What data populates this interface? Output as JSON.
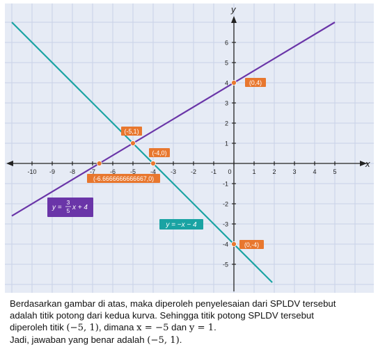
{
  "chart_data": {
    "type": "line",
    "title": "",
    "xlabel": "x",
    "ylabel": "y",
    "xlim": [
      -11,
      6.5
    ],
    "ylim": [
      -6.5,
      7.5
    ],
    "x_ticks": [
      -10,
      -9,
      -8,
      -7,
      -6,
      -5,
      -4,
      -3,
      -2,
      -1,
      0,
      1,
      2,
      3,
      4,
      5
    ],
    "y_ticks": [
      -5,
      -4,
      -3,
      -2,
      -1,
      1,
      2,
      3,
      4,
      5,
      6
    ],
    "x_tick_labels": [
      "-10",
      "-9",
      "-8",
      "-7",
      "-6",
      "-5",
      "-4",
      "-3",
      "-2",
      "-1",
      "0",
      "1",
      "2",
      "3",
      "4",
      "5"
    ],
    "y_tick_labels": [
      "-5",
      "-4",
      "-3",
      "-2",
      "-1",
      "1",
      "2",
      "3",
      "4",
      "5",
      "6"
    ],
    "grid": true,
    "series": [
      {
        "name": "y = 3/5x + 4",
        "label_parts": {
          "lhs": "y =",
          "num": "3",
          "den": "5",
          "rhs": "x + 4"
        },
        "x": [
          -11,
          5
        ],
        "y": [
          -2.6,
          7
        ],
        "color": "#6a35a8"
      },
      {
        "name": "y = −x − 4",
        "x": [
          -11,
          1.9
        ],
        "y": [
          7,
          -5.9
        ],
        "color": "#1aa3a3"
      }
    ],
    "points": [
      {
        "label": "(0,4)",
        "x": 0,
        "y": 4
      },
      {
        "label": "(-5,1)",
        "x": -5,
        "y": 1
      },
      {
        "label": "(-4,0)",
        "x": -4,
        "y": 0
      },
      {
        "label": "(-6.6666666666667,0)",
        "x": -6.6666666666667,
        "y": 0
      },
      {
        "label": "(0,-4)",
        "x": 0,
        "y": -4
      }
    ],
    "point_color": "#e8772e",
    "background": "#e6ebf5",
    "grid_color": "#c8d2e6"
  },
  "explanation": {
    "line1": "Berdasarkan gambar di atas, maka diperoleh penyelesaian dari SPLDV tersebut",
    "line2": "adalah titik potong dari kedua kurva. Sehingga titik potong SPLDV tersebut",
    "line3_pre": "diperoleh titik",
    "line3_point": "(−5, 1)",
    "line3_mid": ", dimana",
    "line3_x": "x = −5",
    "line3_and": "dan",
    "line3_y": "y = 1",
    "line3_end": ".",
    "line4_pre": "Jadi, jawaban yang benar adalah",
    "line4_point": "(−5, 1)",
    "line4_end": "."
  }
}
